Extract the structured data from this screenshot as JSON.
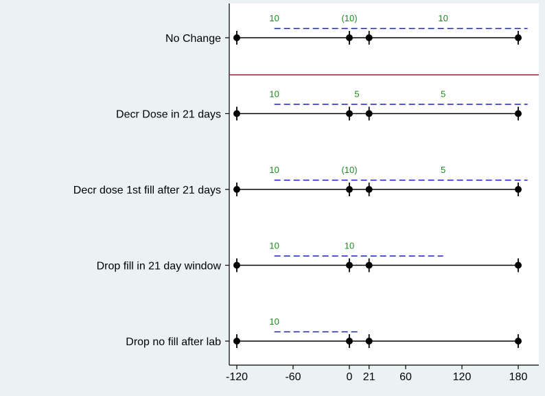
{
  "chart_data": {
    "type": "timeline",
    "title": "",
    "xlabel": "",
    "ylabel": "",
    "xlim": [
      -130,
      192
    ],
    "x_ticks": [
      -120,
      -60,
      0,
      21,
      60,
      120,
      180
    ],
    "x_tick_labels": [
      "-120",
      "-60",
      "0",
      "21",
      "60",
      "120",
      "180"
    ],
    "grid": false,
    "legend": "none",
    "separator_after_row": 0,
    "markers": [
      -120,
      0,
      21,
      180
    ],
    "colors": {
      "background": "#eaf2f3",
      "plot_area": "#ffffff",
      "timeline": "#000000",
      "fill_line": "#1a1acc",
      "annotation": "#1e8a1e",
      "separator": "#9b1b30"
    },
    "rows": [
      {
        "label": "No Change",
        "dashed": [
          -80,
          190
        ],
        "annotations": [
          {
            "x": -80,
            "text": "10"
          },
          {
            "x": 0,
            "text": "(10)"
          },
          {
            "x": 100,
            "text": "10"
          }
        ]
      },
      {
        "label": "Decr Dose in 21 days",
        "dashed": [
          -80,
          190
        ],
        "annotations": [
          {
            "x": -80,
            "text": "10"
          },
          {
            "x": 8,
            "text": "5"
          },
          {
            "x": 100,
            "text": "5"
          }
        ]
      },
      {
        "label": "Decr dose 1st fill after 21 days",
        "dashed": [
          -80,
          190
        ],
        "annotations": [
          {
            "x": -80,
            "text": "10"
          },
          {
            "x": 0,
            "text": "(10)"
          },
          {
            "x": 100,
            "text": "5"
          }
        ]
      },
      {
        "label": "Drop fill in 21 day window",
        "dashed": [
          -80,
          100
        ],
        "annotations": [
          {
            "x": -80,
            "text": "10"
          },
          {
            "x": 0,
            "text": "10"
          }
        ]
      },
      {
        "label": "Drop no fill after lab",
        "dashed": [
          -80,
          10
        ],
        "annotations": [
          {
            "x": -80,
            "text": "10"
          }
        ]
      }
    ]
  }
}
